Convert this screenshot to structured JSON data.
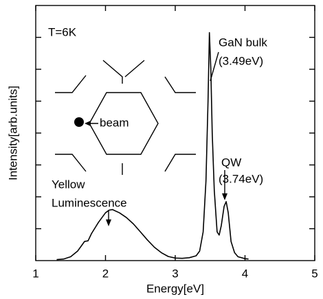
{
  "chart_data": {
    "type": "line",
    "x_label": "Energy[eV]",
    "y_label": "Intensity[arb.units]",
    "annotations": [
      "T=6K",
      "GaN bulk",
      "(3.49eV)",
      "QW",
      "(3.74eV)",
      "Yellow",
      "Luminescence",
      "beam"
    ],
    "x": [
      1.3,
      1.4,
      1.5,
      1.6,
      1.65,
      1.7,
      1.75,
      1.8,
      1.9,
      2.0,
      2.05,
      2.1,
      2.2,
      2.3,
      2.4,
      2.5,
      2.6,
      2.7,
      2.8,
      2.9,
      3.0,
      3.1,
      3.2,
      3.3,
      3.35,
      3.4,
      3.44,
      3.47,
      3.49,
      3.51,
      3.53,
      3.56,
      3.6,
      3.63,
      3.66,
      3.7,
      3.73,
      3.76,
      3.8,
      3.85,
      3.9,
      4.0,
      4.05
    ],
    "values": [
      0.03,
      0.05,
      0.12,
      0.3,
      0.45,
      0.6,
      0.62,
      0.85,
      1.2,
      1.5,
      1.58,
      1.6,
      1.5,
      1.35,
      1.15,
      0.9,
      0.65,
      0.42,
      0.25,
      0.13,
      0.08,
      0.07,
      0.09,
      0.15,
      0.3,
      0.9,
      2.5,
      5.0,
      7.15,
      6.0,
      4.0,
      2.2,
      0.9,
      0.8,
      1.1,
      1.7,
      1.85,
      1.5,
      0.6,
      0.25,
      0.12,
      0.06,
      0.05
    ],
    "color": "#000000",
    "xlim": [
      1,
      5
    ],
    "xticks": [
      1,
      2,
      3,
      4,
      5
    ],
    "ylim": [
      0,
      8
    ],
    "yticks": [
      1,
      2,
      3,
      4,
      5,
      6,
      7
    ]
  }
}
